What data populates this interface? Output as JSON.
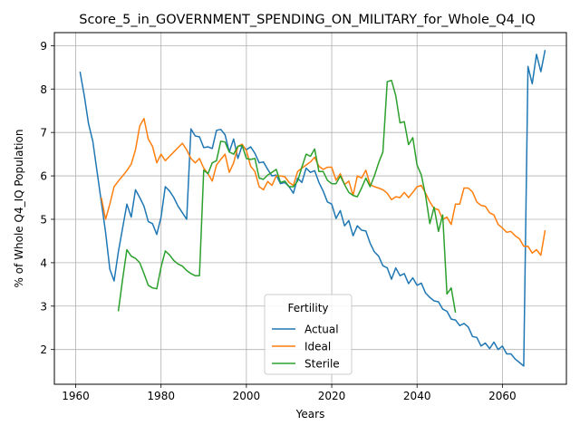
{
  "chart_data": {
    "type": "line",
    "title": "Score_5_in_GOVERNMENT_SPENDING_ON_MILITARY_for_Whole_Q4_IQ",
    "xlabel": "Years",
    "ylabel": "% of Whole Q4_IQ Population",
    "xlim": [
      1955,
      2075
    ],
    "ylim": [
      1.2,
      9.3
    ],
    "xticks": [
      1960,
      1980,
      2000,
      2020,
      2040,
      2060
    ],
    "yticks": [
      2,
      3,
      4,
      5,
      6,
      7,
      8,
      9
    ],
    "grid": true,
    "legend": {
      "title": "Fertility",
      "placement": "bottom-center"
    },
    "series": [
      {
        "name": "Actual",
        "color": "#1f77b4",
        "points": [
          [
            1961,
            8.4
          ],
          [
            1962,
            7.85
          ],
          [
            1963,
            7.2
          ],
          [
            1964,
            6.8
          ],
          [
            1965,
            6.1
          ],
          [
            1966,
            5.4
          ],
          [
            1967,
            4.7
          ],
          [
            1968,
            3.85
          ],
          [
            1969,
            3.58
          ],
          [
            1970,
            4.25
          ],
          [
            1971,
            4.8
          ],
          [
            1972,
            5.35
          ],
          [
            1973,
            5.05
          ],
          [
            1974,
            5.68
          ],
          [
            1975,
            5.5
          ],
          [
            1976,
            5.3
          ],
          [
            1977,
            4.95
          ],
          [
            1978,
            4.9
          ],
          [
            1979,
            4.65
          ],
          [
            1980,
            5.05
          ],
          [
            1981,
            5.75
          ],
          [
            1982,
            5.65
          ],
          [
            1983,
            5.5
          ],
          [
            1984,
            5.3
          ],
          [
            1985,
            5.15
          ],
          [
            1986,
            5.0
          ],
          [
            1987,
            7.08
          ],
          [
            1988,
            6.92
          ],
          [
            1989,
            6.9
          ],
          [
            1990,
            6.65
          ],
          [
            1991,
            6.67
          ],
          [
            1992,
            6.63
          ],
          [
            1993,
            7.05
          ],
          [
            1994,
            7.07
          ],
          [
            1995,
            6.95
          ],
          [
            1996,
            6.55
          ],
          [
            1997,
            6.85
          ],
          [
            1998,
            6.4
          ],
          [
            1999,
            6.7
          ],
          [
            2000,
            6.6
          ],
          [
            2001,
            6.67
          ],
          [
            2002,
            6.52
          ],
          [
            2003,
            6.3
          ],
          [
            2004,
            6.32
          ],
          [
            2005,
            6.15
          ],
          [
            2006,
            6.0
          ],
          [
            2007,
            6.02
          ],
          [
            2008,
            5.82
          ],
          [
            2009,
            5.85
          ],
          [
            2010,
            5.75
          ],
          [
            2011,
            5.6
          ],
          [
            2012,
            5.95
          ],
          [
            2013,
            5.85
          ],
          [
            2014,
            6.18
          ],
          [
            2015,
            6.08
          ],
          [
            2016,
            6.12
          ],
          [
            2017,
            5.85
          ],
          [
            2018,
            5.65
          ],
          [
            2019,
            5.4
          ],
          [
            2020,
            5.35
          ],
          [
            2021,
            5.02
          ],
          [
            2022,
            5.2
          ],
          [
            2023,
            4.85
          ],
          [
            2024,
            4.97
          ],
          [
            2025,
            4.62
          ],
          [
            2026,
            4.85
          ],
          [
            2027,
            4.75
          ],
          [
            2028,
            4.73
          ],
          [
            2029,
            4.45
          ],
          [
            2030,
            4.25
          ],
          [
            2031,
            4.15
          ],
          [
            2032,
            3.93
          ],
          [
            2033,
            3.88
          ],
          [
            2034,
            3.62
          ],
          [
            2035,
            3.88
          ],
          [
            2036,
            3.7
          ],
          [
            2037,
            3.75
          ],
          [
            2038,
            3.52
          ],
          [
            2039,
            3.65
          ],
          [
            2040,
            3.48
          ],
          [
            2041,
            3.53
          ],
          [
            2042,
            3.3
          ],
          [
            2043,
            3.2
          ],
          [
            2044,
            3.12
          ],
          [
            2045,
            3.1
          ],
          [
            2046,
            2.93
          ],
          [
            2047,
            2.88
          ],
          [
            2048,
            2.7
          ],
          [
            2049,
            2.68
          ],
          [
            2050,
            2.55
          ],
          [
            2051,
            2.6
          ],
          [
            2052,
            2.52
          ],
          [
            2053,
            2.3
          ],
          [
            2054,
            2.28
          ],
          [
            2055,
            2.08
          ],
          [
            2056,
            2.15
          ],
          [
            2057,
            2.02
          ],
          [
            2058,
            2.17
          ],
          [
            2059,
            2.0
          ],
          [
            2060,
            2.08
          ],
          [
            2061,
            1.9
          ],
          [
            2062,
            1.9
          ],
          [
            2063,
            1.78
          ],
          [
            2064,
            1.7
          ],
          [
            2065,
            1.62
          ],
          [
            2066,
            8.52
          ],
          [
            2067,
            8.12
          ],
          [
            2068,
            8.8
          ],
          [
            2069,
            8.4
          ],
          [
            2070,
            8.9
          ]
        ]
      },
      {
        "name": "Ideal",
        "color": "#ff7f0e",
        "points": [
          [
            1966,
            5.5
          ],
          [
            1967,
            5.0
          ],
          [
            1968,
            5.35
          ],
          [
            1969,
            5.75
          ],
          [
            1970,
            5.88
          ],
          [
            1971,
            6.0
          ],
          [
            1972,
            6.12
          ],
          [
            1973,
            6.27
          ],
          [
            1974,
            6.6
          ],
          [
            1975,
            7.15
          ],
          [
            1976,
            7.32
          ],
          [
            1977,
            6.85
          ],
          [
            1978,
            6.68
          ],
          [
            1979,
            6.3
          ],
          [
            1980,
            6.5
          ],
          [
            1981,
            6.35
          ],
          [
            1982,
            6.45
          ],
          [
            1983,
            6.55
          ],
          [
            1984,
            6.65
          ],
          [
            1985,
            6.75
          ],
          [
            1986,
            6.6
          ],
          [
            1987,
            6.4
          ],
          [
            1988,
            6.3
          ],
          [
            1989,
            6.4
          ],
          [
            1990,
            6.18
          ],
          [
            1991,
            6.05
          ],
          [
            1992,
            5.88
          ],
          [
            1993,
            6.25
          ],
          [
            1994,
            6.38
          ],
          [
            1995,
            6.5
          ],
          [
            1996,
            6.08
          ],
          [
            1997,
            6.3
          ],
          [
            1998,
            6.68
          ],
          [
            1999,
            6.73
          ],
          [
            2000,
            6.58
          ],
          [
            2001,
            6.22
          ],
          [
            2002,
            6.1
          ],
          [
            2003,
            5.75
          ],
          [
            2004,
            5.68
          ],
          [
            2005,
            5.87
          ],
          [
            2006,
            5.78
          ],
          [
            2007,
            6.0
          ],
          [
            2008,
            6.0
          ],
          [
            2009,
            5.98
          ],
          [
            2010,
            5.85
          ],
          [
            2011,
            5.78
          ],
          [
            2012,
            6.1
          ],
          [
            2013,
            6.18
          ],
          [
            2014,
            6.25
          ],
          [
            2015,
            6.32
          ],
          [
            2016,
            6.43
          ],
          [
            2017,
            6.22
          ],
          [
            2018,
            6.15
          ],
          [
            2019,
            6.2
          ],
          [
            2020,
            6.2
          ],
          [
            2021,
            5.9
          ],
          [
            2022,
            6.05
          ],
          [
            2023,
            5.8
          ],
          [
            2024,
            5.88
          ],
          [
            2025,
            5.55
          ],
          [
            2026,
            6.0
          ],
          [
            2027,
            5.95
          ],
          [
            2028,
            6.13
          ],
          [
            2029,
            5.8
          ],
          [
            2030,
            5.75
          ],
          [
            2031,
            5.72
          ],
          [
            2032,
            5.68
          ],
          [
            2033,
            5.6
          ],
          [
            2034,
            5.45
          ],
          [
            2035,
            5.52
          ],
          [
            2036,
            5.5
          ],
          [
            2037,
            5.62
          ],
          [
            2038,
            5.5
          ],
          [
            2039,
            5.62
          ],
          [
            2040,
            5.75
          ],
          [
            2041,
            5.78
          ],
          [
            2042,
            5.6
          ],
          [
            2043,
            5.4
          ],
          [
            2044,
            5.25
          ],
          [
            2045,
            5.22
          ],
          [
            2046,
            5.0
          ],
          [
            2047,
            5.05
          ],
          [
            2048,
            4.88
          ],
          [
            2049,
            5.35
          ],
          [
            2050,
            5.35
          ],
          [
            2051,
            5.72
          ],
          [
            2052,
            5.72
          ],
          [
            2053,
            5.63
          ],
          [
            2054,
            5.4
          ],
          [
            2055,
            5.32
          ],
          [
            2056,
            5.3
          ],
          [
            2057,
            5.15
          ],
          [
            2058,
            5.1
          ],
          [
            2059,
            4.88
          ],
          [
            2060,
            4.8
          ],
          [
            2061,
            4.7
          ],
          [
            2062,
            4.72
          ],
          [
            2063,
            4.62
          ],
          [
            2064,
            4.55
          ],
          [
            2065,
            4.38
          ],
          [
            2066,
            4.38
          ],
          [
            2067,
            4.22
          ],
          [
            2068,
            4.3
          ],
          [
            2069,
            4.17
          ],
          [
            2070,
            4.75
          ]
        ]
      },
      {
        "name": "Sterile",
        "color": "#2ca02c",
        "points": [
          [
            1970,
            2.88
          ],
          [
            1971,
            3.62
          ],
          [
            1972,
            4.3
          ],
          [
            1973,
            4.15
          ],
          [
            1974,
            4.1
          ],
          [
            1975,
            4.0
          ],
          [
            1976,
            3.75
          ],
          [
            1977,
            3.48
          ],
          [
            1978,
            3.42
          ],
          [
            1979,
            3.4
          ],
          [
            1980,
            3.9
          ],
          [
            1981,
            4.27
          ],
          [
            1982,
            4.18
          ],
          [
            1983,
            4.05
          ],
          [
            1984,
            3.97
          ],
          [
            1985,
            3.92
          ],
          [
            1986,
            3.82
          ],
          [
            1987,
            3.75
          ],
          [
            1988,
            3.7
          ],
          [
            1989,
            3.7
          ],
          [
            1990,
            6.13
          ],
          [
            1991,
            6.05
          ],
          [
            1992,
            6.3
          ],
          [
            1993,
            6.35
          ],
          [
            1994,
            6.8
          ],
          [
            1995,
            6.78
          ],
          [
            1996,
            6.55
          ],
          [
            1997,
            6.5
          ],
          [
            1998,
            6.68
          ],
          [
            1999,
            6.7
          ],
          [
            2000,
            6.4
          ],
          [
            2001,
            6.38
          ],
          [
            2002,
            6.4
          ],
          [
            2003,
            5.95
          ],
          [
            2004,
            5.92
          ],
          [
            2005,
            6.02
          ],
          [
            2006,
            6.08
          ],
          [
            2007,
            6.15
          ],
          [
            2008,
            5.85
          ],
          [
            2009,
            5.88
          ],
          [
            2010,
            5.75
          ],
          [
            2011,
            5.75
          ],
          [
            2012,
            5.88
          ],
          [
            2013,
            6.2
          ],
          [
            2014,
            6.5
          ],
          [
            2015,
            6.45
          ],
          [
            2016,
            6.62
          ],
          [
            2017,
            6.1
          ],
          [
            2018,
            6.1
          ],
          [
            2019,
            5.9
          ],
          [
            2020,
            5.82
          ],
          [
            2021,
            5.82
          ],
          [
            2022,
            6.0
          ],
          [
            2023,
            5.8
          ],
          [
            2024,
            5.62
          ],
          [
            2025,
            5.55
          ],
          [
            2026,
            5.52
          ],
          [
            2027,
            5.72
          ],
          [
            2028,
            5.95
          ],
          [
            2029,
            5.75
          ],
          [
            2030,
            6.0
          ],
          [
            2031,
            6.3
          ],
          [
            2032,
            6.55
          ],
          [
            2033,
            8.17
          ],
          [
            2034,
            8.2
          ],
          [
            2035,
            7.85
          ],
          [
            2036,
            7.22
          ],
          [
            2037,
            7.25
          ],
          [
            2038,
            6.72
          ],
          [
            2039,
            6.88
          ],
          [
            2040,
            6.25
          ],
          [
            2041,
            6.02
          ],
          [
            2042,
            5.55
          ],
          [
            2043,
            4.9
          ],
          [
            2044,
            5.28
          ],
          [
            2045,
            4.72
          ],
          [
            2046,
            5.1
          ],
          [
            2047,
            3.28
          ],
          [
            2048,
            3.42
          ],
          [
            2049,
            2.85
          ]
        ]
      }
    ]
  }
}
